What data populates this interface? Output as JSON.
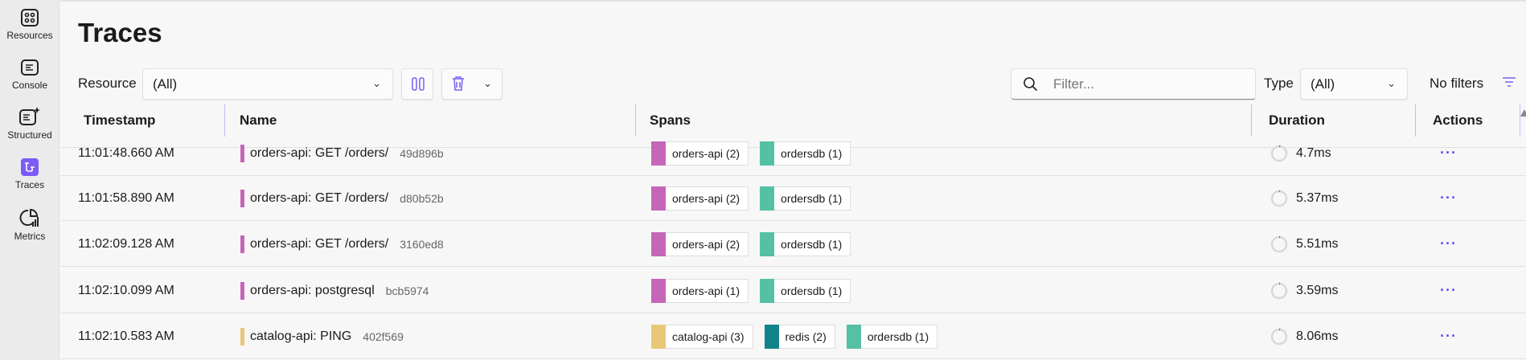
{
  "sidebar": {
    "items": [
      {
        "label": "Resources",
        "icon": "resources-grid-icon"
      },
      {
        "label": "Console",
        "icon": "console-icon"
      },
      {
        "label": "Structured",
        "icon": "structured-logs-icon"
      },
      {
        "label": "Traces",
        "icon": "traces-icon",
        "active": true
      },
      {
        "label": "Metrics",
        "icon": "metrics-icon"
      }
    ]
  },
  "page": {
    "title": "Traces"
  },
  "toolbar": {
    "resource_label": "Resource",
    "resource_value": "(All)",
    "filter_placeholder": "Filter...",
    "type_label": "Type",
    "type_value": "(All)",
    "filters_status": "No filters"
  },
  "table": {
    "headers": [
      "Timestamp",
      "Name",
      "Spans",
      "Duration",
      "Actions"
    ],
    "rows": [
      {
        "timestamp": "11:01:48.660 AM",
        "name": "orders-api: GET /orders/",
        "trace_id": "49d896b",
        "name_color": "#c566b9",
        "spans": [
          {
            "label": "orders-api (2)",
            "color": "#c566b9"
          },
          {
            "label": "ordersdb (1)",
            "color": "#55c0a6"
          }
        ],
        "duration": "4.7ms",
        "duration_fraction": 0.02,
        "actions": "···"
      },
      {
        "timestamp": "11:01:58.890 AM",
        "name": "orders-api: GET /orders/",
        "trace_id": "d80b52b",
        "name_color": "#c566b9",
        "spans": [
          {
            "label": "orders-api (2)",
            "color": "#c566b9"
          },
          {
            "label": "ordersdb (1)",
            "color": "#55c0a6"
          }
        ],
        "duration": "5.37ms",
        "duration_fraction": 0.02,
        "actions": "···"
      },
      {
        "timestamp": "11:02:09.128 AM",
        "name": "orders-api: GET /orders/",
        "trace_id": "3160ed8",
        "name_color": "#c566b9",
        "spans": [
          {
            "label": "orders-api (2)",
            "color": "#c566b9"
          },
          {
            "label": "ordersdb (1)",
            "color": "#55c0a6"
          }
        ],
        "duration": "5.51ms",
        "duration_fraction": 0.02,
        "actions": "···"
      },
      {
        "timestamp": "11:02:10.099 AM",
        "name": "orders-api: postgresql",
        "trace_id": "bcb5974",
        "name_color": "#c566b9",
        "spans": [
          {
            "label": "orders-api (1)",
            "color": "#c566b9"
          },
          {
            "label": "ordersdb (1)",
            "color": "#55c0a6"
          }
        ],
        "duration": "3.59ms",
        "duration_fraction": 0.02,
        "actions": "···"
      },
      {
        "timestamp": "11:02:10.583 AM",
        "name": "catalog-api: PING",
        "trace_id": "402f569",
        "name_color": "#e8c878",
        "spans": [
          {
            "label": "catalog-api (3)",
            "color": "#e8c878"
          },
          {
            "label": "redis (2)",
            "color": "#13838a"
          },
          {
            "label": "ordersdb (1)",
            "color": "#55c0a6"
          }
        ],
        "duration": "8.06ms",
        "duration_fraction": 0.02,
        "actions": "···"
      }
    ]
  },
  "colors": {
    "accent": "#7b5cf6"
  }
}
